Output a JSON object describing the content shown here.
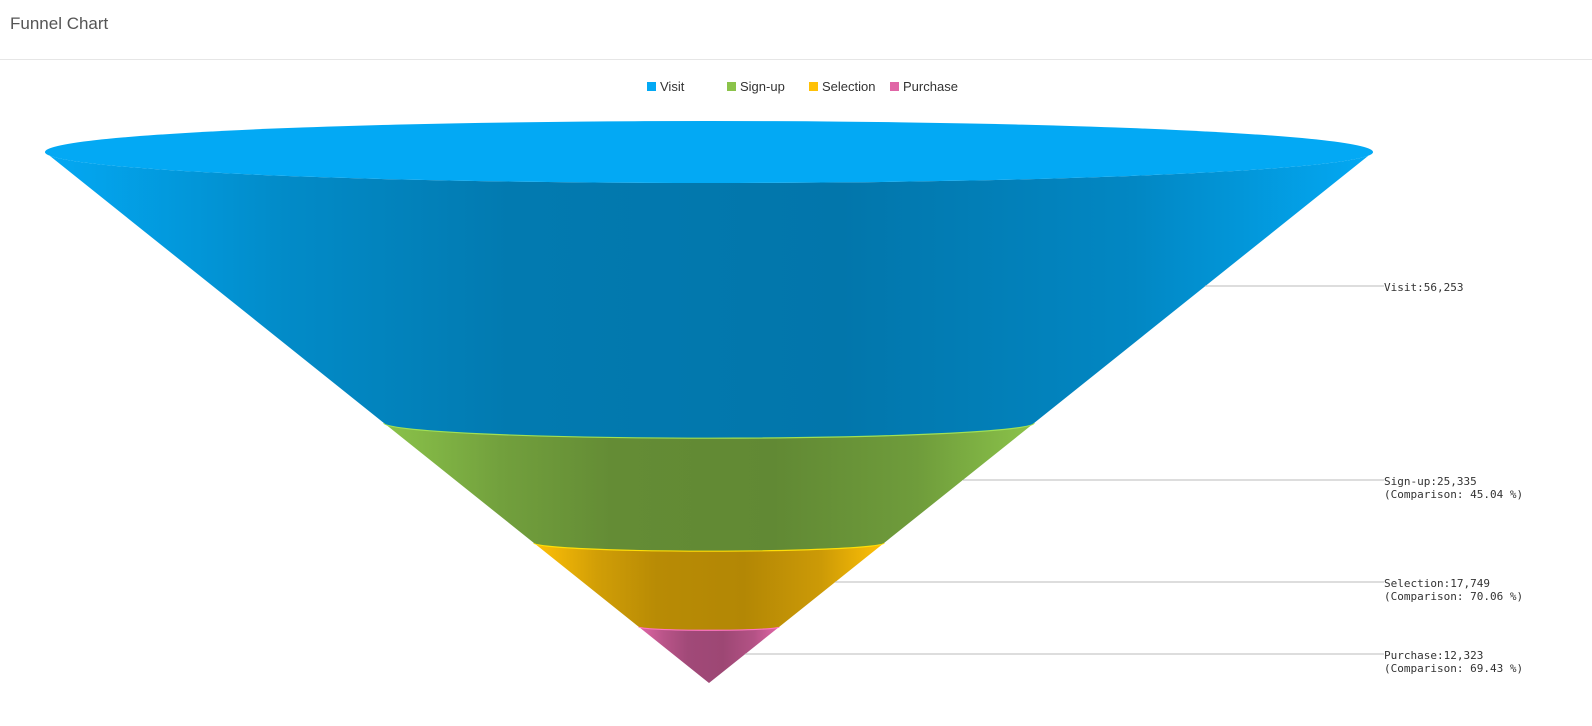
{
  "header": {
    "title": "Funnel Chart"
  },
  "chart_data": {
    "type": "funnel",
    "categories": [
      "Visit",
      "Sign-up",
      "Selection",
      "Purchase"
    ],
    "values": [
      56253,
      25335,
      17749,
      12323
    ],
    "comparisons": [
      "",
      "45.04",
      "70.06",
      "69.43"
    ],
    "legend_position": "top-center",
    "legend": [
      {
        "name": "Visit",
        "color": "#03a9f4"
      },
      {
        "name": "Sign-up",
        "color": "#8bc34a"
      },
      {
        "name": "Selection",
        "color": "#ffc107"
      },
      {
        "name": "Purchase",
        "color": "#e066a6"
      }
    ],
    "data_labels": [
      {
        "line1": "Visit:56,253",
        "line2": ""
      },
      {
        "line1": "Sign-up:25,335",
        "line2": "(Comparison: 45.04 %)"
      },
      {
        "line1": "Selection:17,749",
        "line2": "(Comparison: 70.06 %)"
      },
      {
        "line1": "Purchase:12,323",
        "line2": "(Comparison: 69.43 %)"
      }
    ]
  },
  "colors": {
    "visit": "#03a9f4",
    "signup": "#8bc34a",
    "selection": "#ffc107",
    "purchase": "#e066a6"
  }
}
